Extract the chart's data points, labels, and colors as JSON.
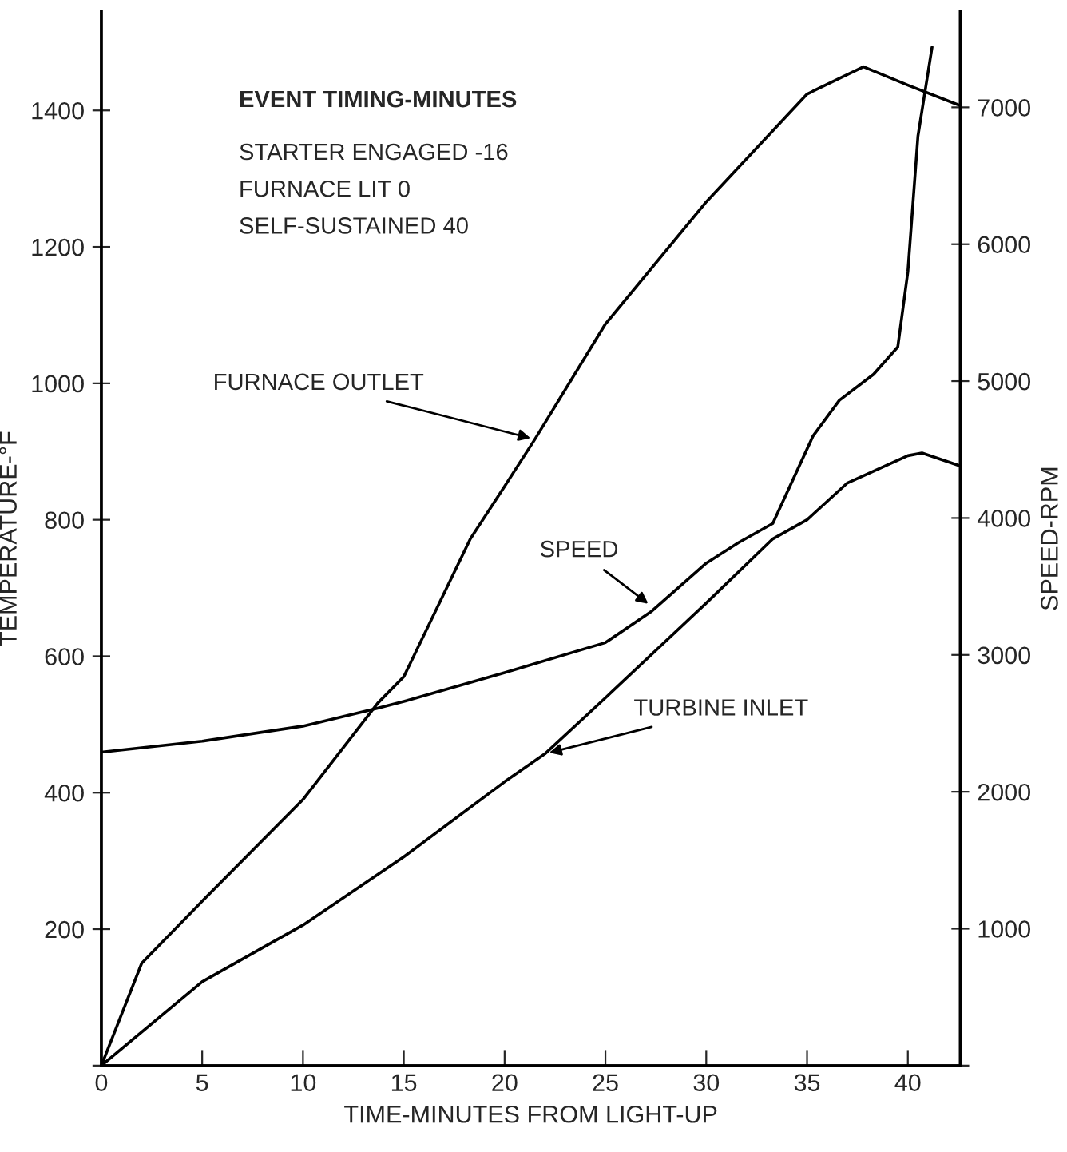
{
  "chart_data": {
    "type": "line",
    "xlabel": "TIME-MINUTES FROM LIGHT-UP",
    "ylabel": "TEMPERATURE-°F",
    "y2label": "SPEED-RPM",
    "xlim": [
      0,
      42.6
    ],
    "xticks": [
      0,
      5,
      10,
      15,
      20,
      25,
      30,
      35,
      40
    ],
    "ylim": [
      0,
      1545
    ],
    "yticks": [
      {
        "value": 0,
        "label": null
      },
      200,
      400,
      600,
      800,
      1000,
      1200,
      1400
    ],
    "y2lim": [
      0,
      7700
    ],
    "y2ticks": [
      {
        "value": 0,
        "label": null
      },
      1000,
      2000,
      3000,
      4000,
      5000,
      6000,
      7000
    ],
    "grid": false,
    "legend": false,
    "marker": "none",
    "line_style": "solid",
    "series": [
      {
        "color": "#000000",
        "x": [
          0,
          2,
          5,
          10,
          13.7,
          15,
          18.3,
          20,
          21.5,
          25,
          30,
          35,
          37.8,
          40,
          42.6
        ],
        "values": [
          0,
          150,
          241,
          390,
          531,
          570,
          772,
          849,
          918,
          1087,
          1266,
          1424,
          1464,
          1437,
          1407
        ]
      },
      {
        "color": "#000000",
        "x": [
          0,
          5,
          10,
          15,
          20,
          22,
          25,
          30,
          33.3,
          35,
          37,
          40,
          40.7,
          42.6
        ],
        "values": [
          0,
          123,
          206,
          306,
          416,
          457,
          539,
          678,
          772,
          800,
          854,
          894,
          898,
          879
        ]
      },
      {
        "color": "#000000",
        "axis": "y2",
        "x": [
          0,
          5,
          10,
          13.7,
          15,
          20,
          25,
          27.3,
          30,
          31.6,
          33.3,
          35.3,
          36.6,
          38.3,
          39.5,
          40,
          40.5,
          41.2
        ],
        "values": [
          2290,
          2370,
          2480,
          2610,
          2660,
          2870,
          3090,
          3320,
          3670,
          3820,
          3960,
          4600,
          4860,
          5050,
          5250,
          5800,
          6790,
          7440
        ]
      }
    ],
    "annotations": [
      "EVENT TIMING-MINUTES",
      "STARTER ENGAGED -16",
      "FURNACE LIT 0",
      "SELF-SUSTAINED 40",
      {
        "text": "FURNACE OUTLET",
        "x": 21.5,
        "y": 918
      },
      {
        "text": "SPEED",
        "x": 27.3,
        "y": 673
      },
      {
        "text": "TURBINE INLET",
        "x": 22,
        "y": 457
      }
    ]
  }
}
